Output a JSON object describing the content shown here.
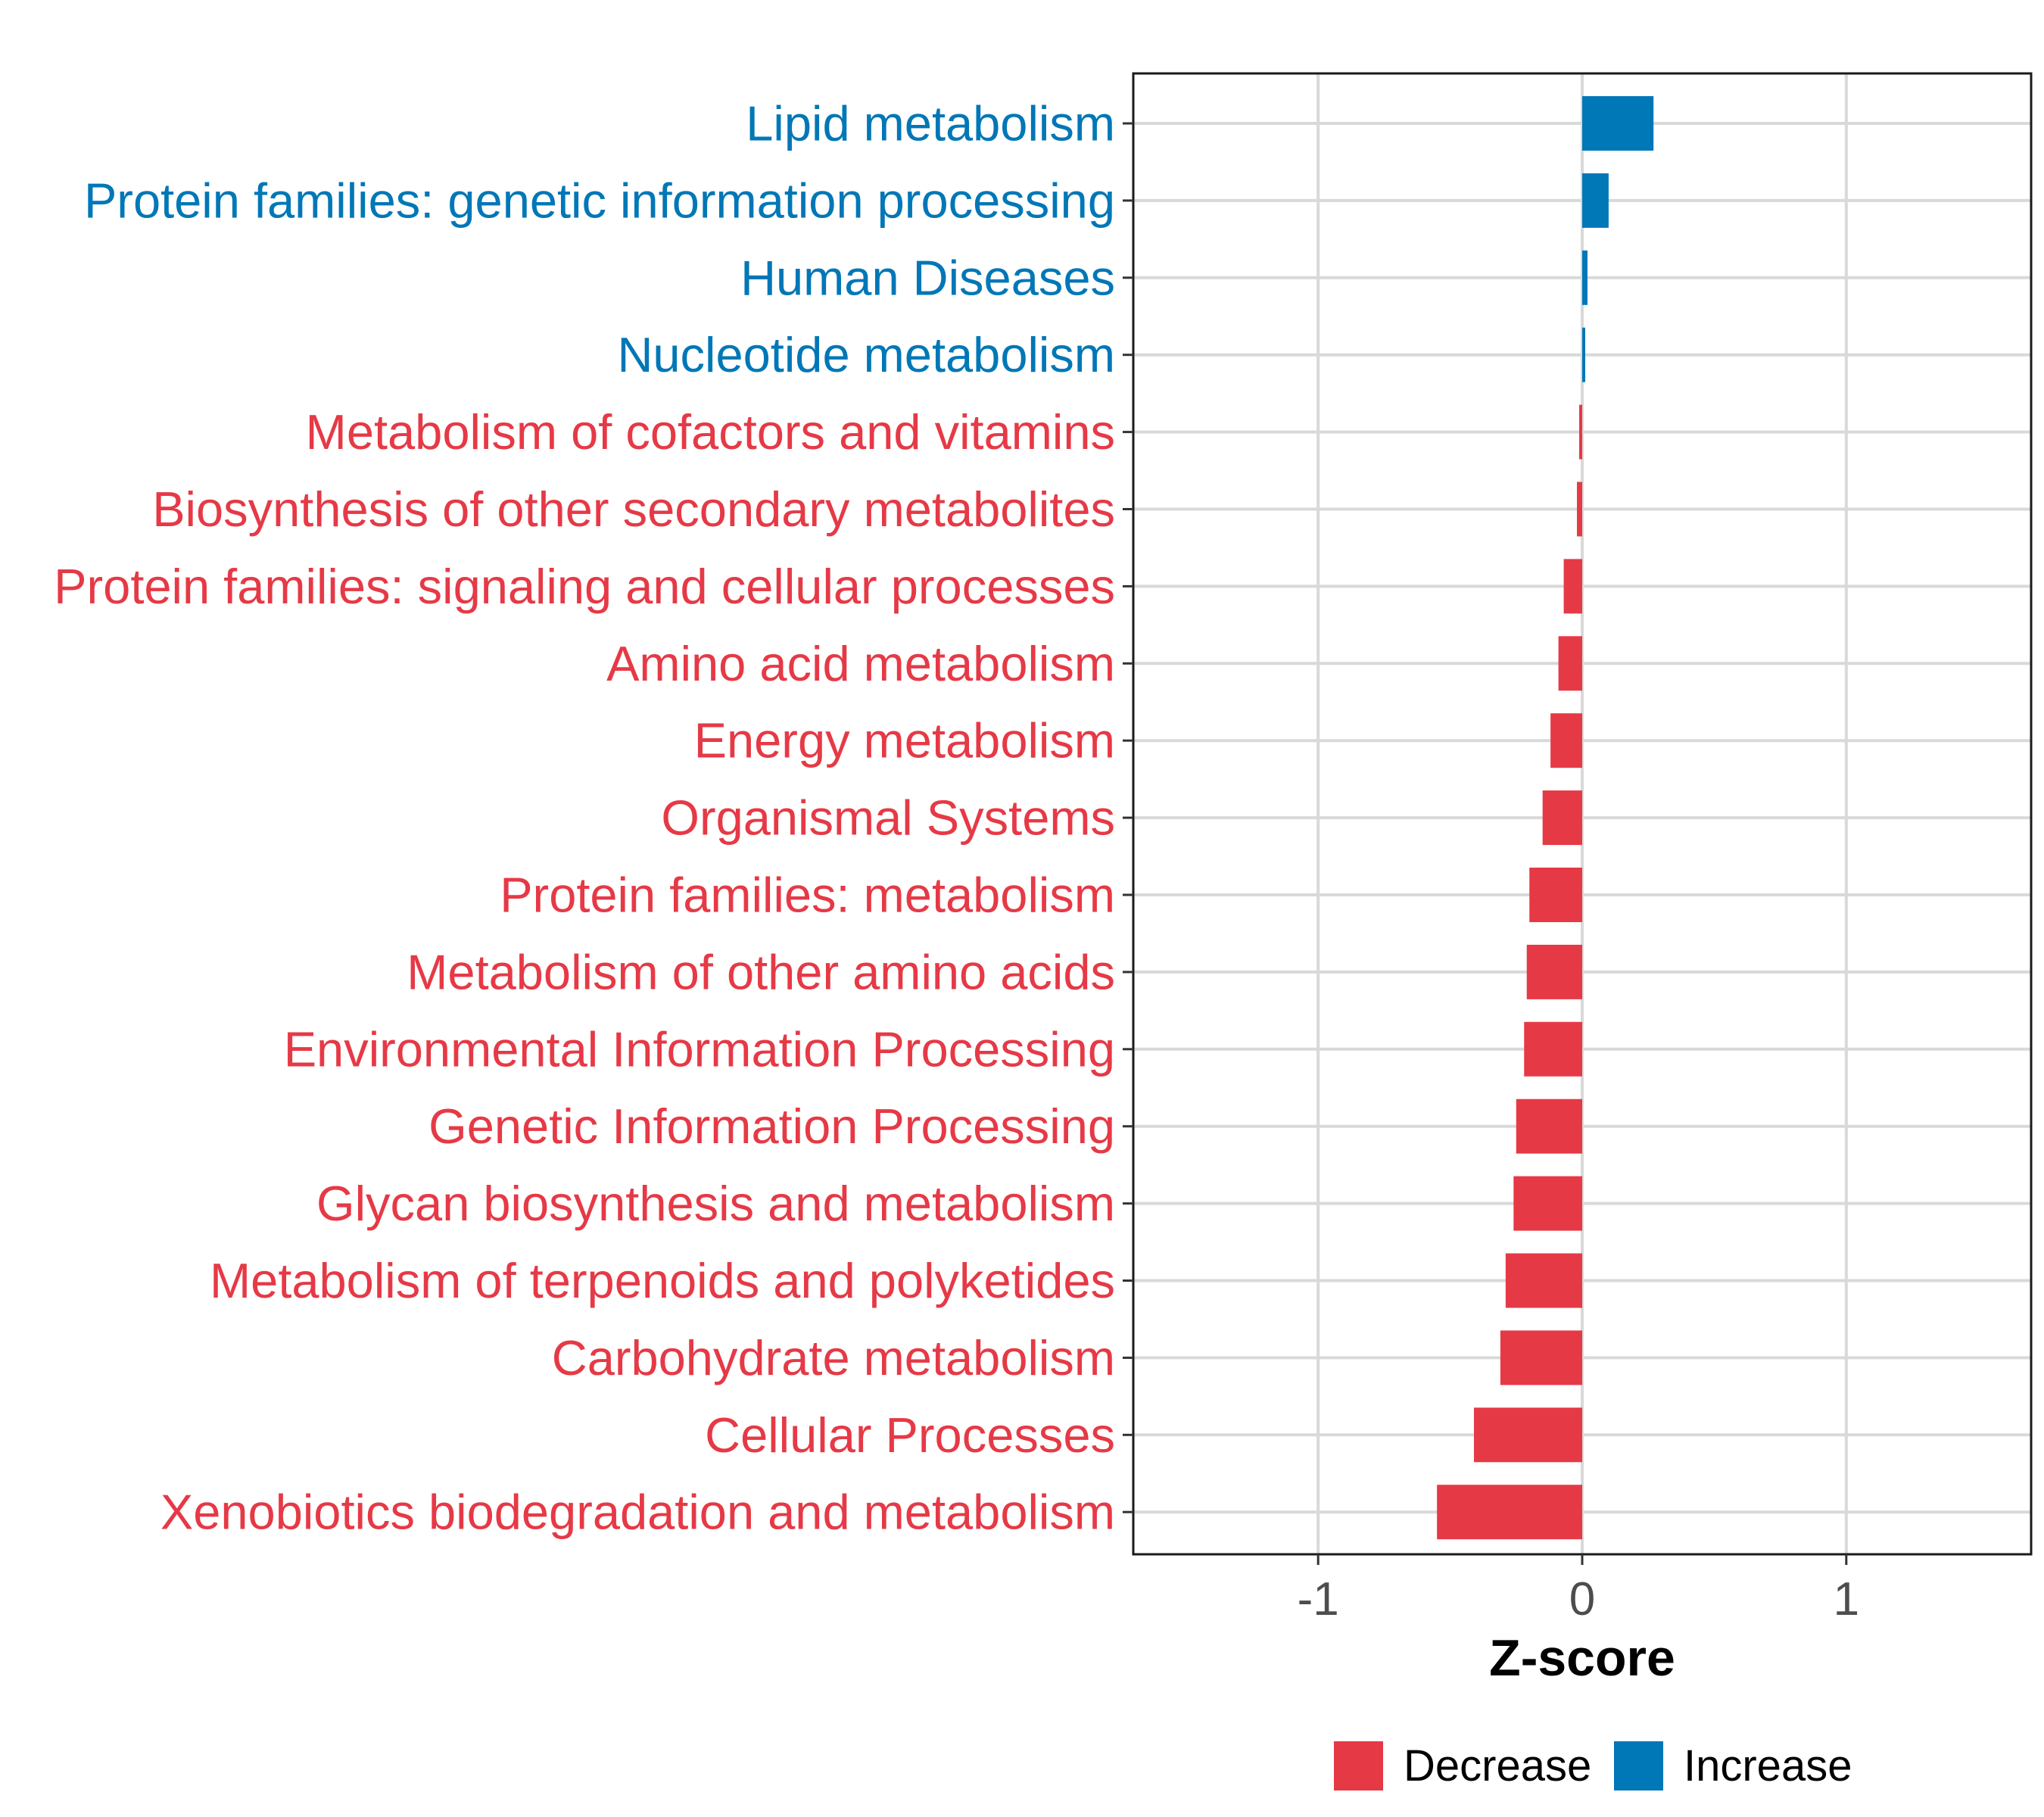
{
  "chart_data": {
    "type": "bar",
    "orientation": "horizontal",
    "title": "",
    "xlabel": "Z-score",
    "ylabel": "",
    "xlim": [
      -1.7,
      1.7
    ],
    "xticks": [
      -1,
      0,
      1
    ],
    "xtick_labels": [
      "-1",
      "0",
      "1"
    ],
    "grid": true,
    "legend_position": "bottom",
    "colors": {
      "Decrease": "#e63946",
      "Increase": "#0077b6"
    },
    "legend": [
      {
        "name": "Decrease",
        "color": "#e63946"
      },
      {
        "name": "Increase",
        "color": "#0077b6"
      }
    ],
    "categories": [
      "Lipid metabolism",
      "Protein families: genetic information processing",
      "Human Diseases",
      "Nucleotide metabolism",
      "Metabolism of cofactors and vitamins",
      "Biosynthesis of other secondary metabolites",
      "Protein families: signaling and cellular processes",
      "Amino acid metabolism",
      "Energy metabolism",
      "Organismal Systems",
      "Protein families: metabolism",
      "Metabolism of other amino acids",
      "Environmental Information Processing",
      "Genetic Information Processing",
      "Glycan biosynthesis and metabolism",
      "Metabolism of terpenoids and polyketides",
      "Carbohydrate metabolism",
      "Cellular Processes",
      "Xenobiotics biodegradation and metabolism"
    ],
    "values": [
      0.27,
      0.1,
      0.02,
      0.01,
      -0.01,
      -0.02,
      -0.07,
      -0.09,
      -0.12,
      -0.15,
      -0.2,
      -0.21,
      -0.22,
      -0.25,
      -0.26,
      -0.29,
      -0.31,
      -0.41,
      -0.55
    ],
    "groups": [
      "Increase",
      "Increase",
      "Increase",
      "Increase",
      "Decrease",
      "Decrease",
      "Decrease",
      "Decrease",
      "Decrease",
      "Decrease",
      "Decrease",
      "Decrease",
      "Decrease",
      "Decrease",
      "Decrease",
      "Decrease",
      "Decrease",
      "Decrease",
      "Decrease"
    ]
  }
}
